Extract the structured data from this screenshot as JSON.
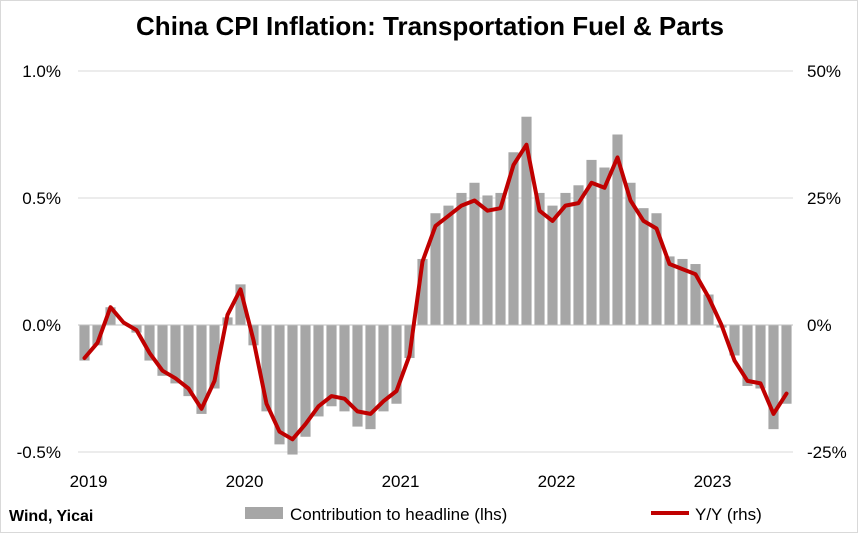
{
  "chart_data": {
    "type": "bar+line",
    "title": "China CPI Inflation: Transportation Fuel & Parts",
    "source": "Wind, Yicai",
    "left_axis": {
      "ticks": [
        "1.0%",
        "0.5%",
        "0.0%",
        "-0.5%"
      ],
      "tick_values": [
        1.0,
        0.5,
        0.0,
        -0.5
      ],
      "ylim": [
        -0.5,
        1.0
      ]
    },
    "right_axis": {
      "ticks": [
        "50%",
        "25%",
        "0%",
        "-25%"
      ],
      "tick_values": [
        50,
        25,
        0,
        -25
      ],
      "ylim": [
        -25,
        50
      ]
    },
    "x_axis": {
      "labels": [
        "2019",
        "2020",
        "2021",
        "2022",
        "2023"
      ]
    },
    "grid": "horizontal",
    "legend": {
      "position": "bottom",
      "bar_label": "Contribution to headline (lhs)",
      "line_label": "Y/Y (rhs)"
    },
    "colors": {
      "bar": "#a6a6a6",
      "line": "#c00000",
      "grid": "#d9d9d9"
    },
    "months": [
      "2019-01",
      "2019-02",
      "2019-03",
      "2019-04",
      "2019-05",
      "2019-06",
      "2019-07",
      "2019-08",
      "2019-09",
      "2019-10",
      "2019-11",
      "2019-12",
      "2020-01",
      "2020-02",
      "2020-03",
      "2020-04",
      "2020-05",
      "2020-06",
      "2020-07",
      "2020-08",
      "2020-09",
      "2020-10",
      "2020-11",
      "2020-12",
      "2021-01",
      "2021-02",
      "2021-03",
      "2021-04",
      "2021-05",
      "2021-06",
      "2021-07",
      "2021-08",
      "2021-09",
      "2021-10",
      "2021-11",
      "2021-12",
      "2022-01",
      "2022-02",
      "2022-03",
      "2022-04",
      "2022-05",
      "2022-06",
      "2022-07",
      "2022-08",
      "2022-09",
      "2022-10",
      "2022-11",
      "2022-12",
      "2023-01",
      "2023-02",
      "2023-03",
      "2023-04",
      "2023-05",
      "2023-06",
      "2023-07"
    ],
    "series": [
      {
        "name": "Contribution to headline (lhs)",
        "type": "bar",
        "axis": "left",
        "values": [
          -0.14,
          -0.08,
          0.07,
          0.0,
          -0.03,
          -0.14,
          -0.2,
          -0.23,
          -0.28,
          -0.35,
          -0.25,
          0.03,
          0.16,
          -0.08,
          -0.34,
          -0.47,
          -0.51,
          -0.44,
          -0.36,
          -0.32,
          -0.34,
          -0.4,
          -0.41,
          -0.34,
          -0.31,
          -0.13,
          0.26,
          0.44,
          0.47,
          0.52,
          0.56,
          0.51,
          0.52,
          0.68,
          0.82,
          0.52,
          0.47,
          0.52,
          0.55,
          0.65,
          0.62,
          0.75,
          0.56,
          0.46,
          0.44,
          0.27,
          0.26,
          0.24,
          0.12,
          -0.01,
          -0.12,
          -0.24,
          -0.25,
          -0.41,
          -0.31
        ]
      },
      {
        "name": "Y/Y (rhs)",
        "type": "line",
        "axis": "right",
        "values": [
          -6.5,
          -3.5,
          3.5,
          0.5,
          -1.0,
          -5.5,
          -9.0,
          -10.5,
          -12.5,
          -16.5,
          -11.0,
          2.0,
          7.0,
          -3.0,
          -15.5,
          -21.0,
          -22.5,
          -19.5,
          -16.0,
          -14.0,
          -14.5,
          -17.0,
          -17.5,
          -15.0,
          -13.0,
          -6.0,
          12.5,
          19.5,
          21.5,
          23.5,
          24.5,
          22.5,
          23.0,
          31.5,
          35.5,
          22.5,
          20.5,
          23.5,
          24.0,
          28.0,
          27.0,
          33.0,
          24.5,
          20.5,
          19.0,
          12.0,
          11.0,
          10.0,
          5.5,
          0.0,
          -7.0,
          -11.0,
          -11.5,
          -17.5,
          -13.5
        ]
      }
    ]
  }
}
